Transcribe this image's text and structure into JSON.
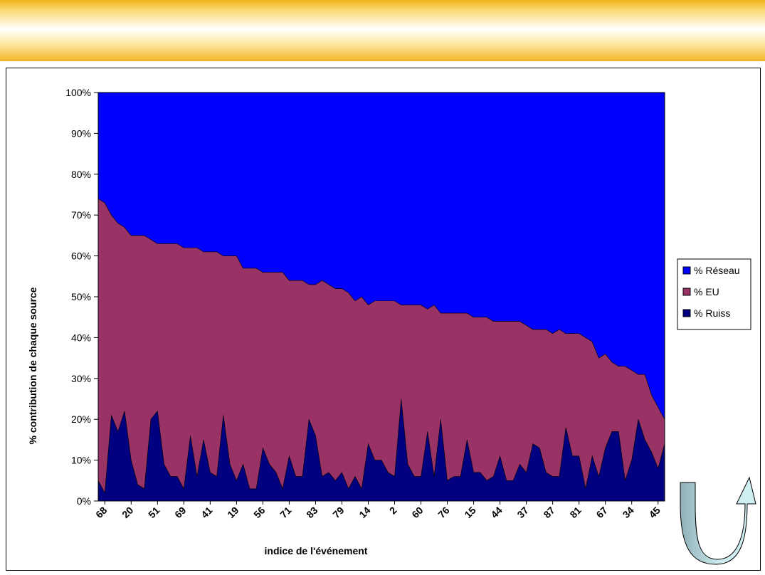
{
  "colors": {
    "reseau": "#0000ff",
    "eu": "#993366",
    "ruiss": "#000080",
    "arrow_light": "#cfeef2",
    "arrow_dark": "#8fb0b6"
  },
  "decoration": {
    "arrow_icon": "u-turn-arrow-icon"
  },
  "chart_data": {
    "type": "area",
    "stacked": "percent",
    "xlabel": "indice de l'événement",
    "ylabel": "% contribution de chaque source",
    "ylim": [
      0,
      100
    ],
    "yticks": [
      "0%",
      "10%",
      "20%",
      "30%",
      "40%",
      "50%",
      "60%",
      "70%",
      "80%",
      "90%",
      "100%"
    ],
    "xtick_labels": [
      "68",
      "20",
      "51",
      "69",
      "41",
      "19",
      "56",
      "71",
      "83",
      "79",
      "14",
      "2",
      "60",
      "76",
      "15",
      "44",
      "37",
      "87",
      "81",
      "67",
      "34",
      "45"
    ],
    "legend_position": "right",
    "series": [
      {
        "name": "% Ruiss",
        "values": [
          5,
          2,
          21,
          17,
          22,
          10,
          4,
          3,
          20,
          22,
          9,
          6,
          6,
          3,
          16,
          6,
          15,
          7,
          6,
          21,
          9,
          5,
          9,
          3,
          3,
          13,
          9,
          7,
          3,
          11,
          6,
          6,
          20,
          16,
          6,
          7,
          5,
          7,
          3,
          6,
          3,
          14,
          10,
          10,
          7,
          6,
          25,
          9,
          6,
          6,
          17,
          6,
          20,
          5,
          6,
          6,
          15,
          7,
          7,
          5,
          6,
          11,
          5,
          5,
          9,
          7,
          14,
          13,
          7,
          6,
          6,
          18,
          11,
          11,
          3,
          11,
          6,
          13,
          17,
          17,
          5,
          10,
          20,
          15,
          12,
          8,
          14
        ]
      },
      {
        "name": "% EU",
        "values": [
          69,
          71,
          49,
          51,
          45,
          55,
          61,
          62,
          44,
          41,
          54,
          57,
          57,
          59,
          46,
          56,
          46,
          54,
          55,
          39,
          51,
          55,
          48,
          54,
          54,
          43,
          47,
          49,
          53,
          43,
          48,
          48,
          33,
          37,
          48,
          46,
          47,
          45,
          48,
          43,
          47,
          34,
          39,
          39,
          42,
          43,
          23,
          39,
          42,
          42,
          30,
          42,
          26,
          41,
          40,
          40,
          31,
          38,
          38,
          40,
          38,
          33,
          39,
          39,
          35,
          36,
          28,
          29,
          35,
          35,
          36,
          23,
          30,
          30,
          37,
          28,
          29,
          23,
          17,
          16,
          28,
          22,
          11,
          16,
          14,
          15,
          6
        ]
      },
      {
        "name": "% Réseau",
        "values": [
          26,
          27,
          30,
          32,
          33,
          35,
          35,
          35,
          36,
          37,
          37,
          37,
          37,
          38,
          38,
          38,
          39,
          39,
          39,
          40,
          40,
          40,
          43,
          43,
          43,
          44,
          44,
          44,
          44,
          46,
          46,
          46,
          47,
          47,
          46,
          47,
          48,
          48,
          49,
          51,
          50,
          52,
          51,
          51,
          51,
          51,
          52,
          52,
          52,
          52,
          53,
          52,
          54,
          54,
          54,
          54,
          54,
          55,
          55,
          55,
          56,
          56,
          56,
          56,
          56,
          57,
          58,
          58,
          58,
          59,
          58,
          59,
          59,
          59,
          60,
          61,
          65,
          64,
          66,
          67,
          67,
          68,
          69,
          69,
          74,
          77,
          80
        ]
      }
    ]
  }
}
